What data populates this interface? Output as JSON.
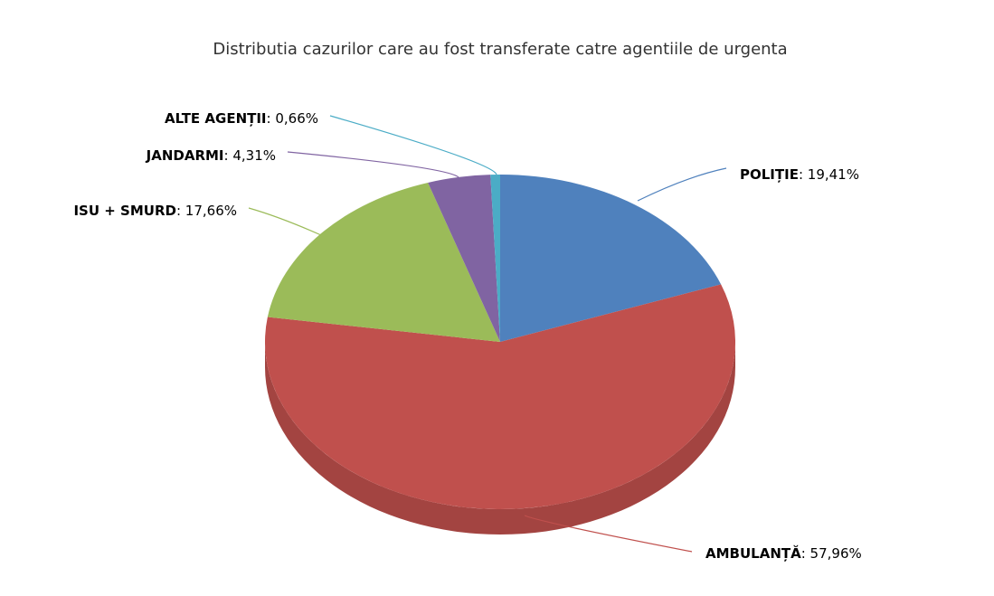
{
  "chart_data": {
    "type": "pie",
    "title": "Distributia cazurilor care au fost transferate catre agentiile de urgenta",
    "categories": [
      "POLIȚIE",
      "AMBULANȚĂ",
      "ISU + SMURD",
      "JANDARMI",
      "ALTE AGENȚII"
    ],
    "values": [
      19.41,
      57.96,
      17.66,
      4.31,
      0.66
    ],
    "value_labels": [
      "19,41%",
      "57,96%",
      "17,66%",
      "4,31%",
      "0,66%"
    ],
    "label_separator": ": ",
    "colors": [
      "#4f81bd",
      "#c0504d",
      "#9bbb59",
      "#8064a2",
      "#4bacc6"
    ],
    "three_d": true
  }
}
